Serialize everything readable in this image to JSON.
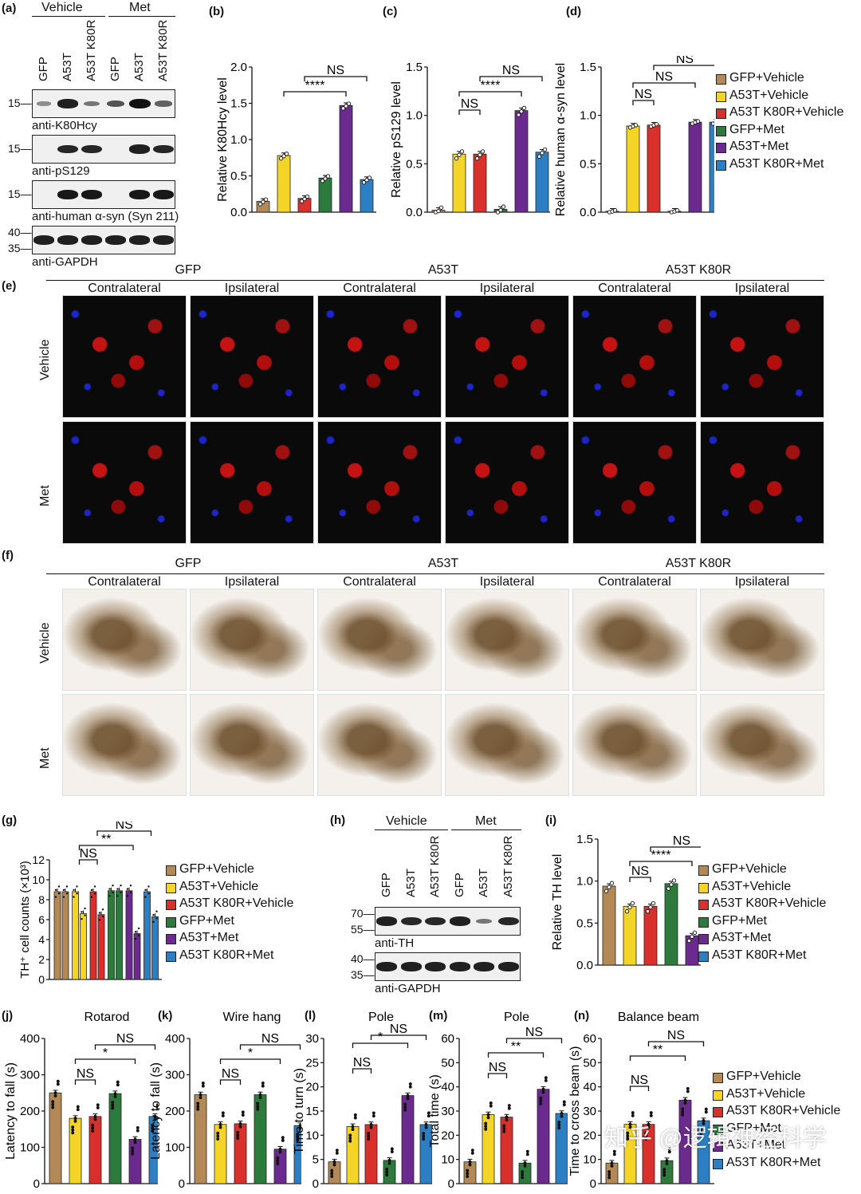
{
  "figure": {
    "a": {
      "label": "(a)",
      "groups": [
        "Vehicle",
        "Met"
      ],
      "lanes": [
        "GFP",
        "A53T",
        "A53T K80R",
        "GFP",
        "A53T",
        "A53T K80R"
      ],
      "blots": [
        {
          "name": "anti-K80Hcy",
          "marker": "15—",
          "intensity": [
            0.15,
            0.9,
            0.3,
            0.55,
            1.0,
            0.45
          ]
        },
        {
          "name": "anti-pS129",
          "marker": "15—",
          "intensity": [
            0,
            0.85,
            0.85,
            0,
            0.9,
            0.85
          ]
        },
        {
          "name": "anti-human α-syn (Syn 211)",
          "marker": "15—",
          "intensity": [
            0,
            0.95,
            0.95,
            0,
            0.95,
            0.95
          ]
        },
        {
          "name": "anti-GAPDH",
          "marker": "40—\n35—",
          "intensity": [
            0.9,
            0.9,
            0.9,
            0.9,
            0.9,
            0.9
          ]
        }
      ]
    },
    "legend_items": [
      {
        "label": "GFP+Vehicle",
        "color": "#b38a56"
      },
      {
        "label": "A53T+Vehicle",
        "color": "#f4d427"
      },
      {
        "label": "A53T K80R+Vehicle",
        "color": "#d9302c"
      },
      {
        "label": "GFP+Met",
        "color": "#2d7a3d"
      },
      {
        "label": "A53T+Met",
        "color": "#6b2a8e"
      },
      {
        "label": "A53T K80R+Met",
        "color": "#2d7fc4"
      }
    ],
    "e": {
      "label": "(e)",
      "groups": [
        "GFP",
        "A53T",
        "A53T K80R"
      ],
      "sides": [
        "Contralateral",
        "Ipsilateral"
      ],
      "rows": [
        "Vehicle",
        "Met"
      ]
    },
    "f": {
      "label": "(f)",
      "groups": [
        "GFP",
        "A53T",
        "A53T K80R"
      ],
      "sides": [
        "Contralateral",
        "Ipsilateral"
      ],
      "rows": [
        "Vehicle",
        "Met"
      ]
    },
    "h": {
      "label": "(h)",
      "groups": [
        "Vehicle",
        "Met"
      ],
      "lanes": [
        "GFP",
        "A53T",
        "A53T K80R",
        "GFP",
        "A53T",
        "A53T K80R"
      ],
      "blots": [
        {
          "name": "anti-TH",
          "marker": "70—\n55—",
          "intensity": [
            0.9,
            0.85,
            0.85,
            0.9,
            0.3,
            0.85
          ]
        },
        {
          "name": "anti-GAPDH",
          "marker": "40—\n35—",
          "intensity": [
            0.9,
            0.9,
            0.9,
            0.9,
            0.9,
            0.9
          ]
        }
      ]
    },
    "watermark": "知乎 @逻辑神经科学"
  },
  "chart_data": [
    {
      "id": "b",
      "label": "(b)",
      "type": "bar",
      "title": "",
      "ylabel": "Relative K80Hcy level",
      "ylim": [
        0,
        2.0
      ],
      "yticks": [
        "0.0",
        "0.5",
        "1.0",
        "1.5",
        "2.0"
      ],
      "values": [
        0.15,
        0.78,
        0.19,
        0.47,
        1.47,
        0.45
      ],
      "sig": [
        {
          "from": 1,
          "to": 4,
          "text": "****"
        },
        {
          "from": 2,
          "to": 5,
          "text": "NS"
        }
      ]
    },
    {
      "id": "c",
      "label": "(c)",
      "type": "bar",
      "title": "",
      "ylabel": "Relative pS129 level",
      "ylim": [
        0,
        1.5
      ],
      "yticks": [
        "0.0",
        "0.5",
        "1.0",
        "1.5"
      ],
      "values": [
        0.02,
        0.6,
        0.6,
        0.03,
        1.05,
        0.62
      ],
      "sig": [
        {
          "from": 1,
          "to": 2,
          "text": "NS"
        },
        {
          "from": 1,
          "to": 4,
          "text": "****"
        },
        {
          "from": 2,
          "to": 5,
          "text": "NS"
        }
      ]
    },
    {
      "id": "d",
      "label": "(d)",
      "type": "bar",
      "title": "",
      "ylabel": "Relative human α-syn level",
      "ylim": [
        0,
        1.5
      ],
      "yticks": [
        "0.0",
        "0.5",
        "1.0",
        "1.5"
      ],
      "values": [
        0.01,
        0.89,
        0.9,
        0.01,
        0.93,
        0.93
      ],
      "sig": [
        {
          "from": 1,
          "to": 2,
          "text": "NS"
        },
        {
          "from": 1,
          "to": 4,
          "text": "NS"
        },
        {
          "from": 2,
          "to": 5,
          "text": "NS"
        }
      ]
    },
    {
      "id": "g",
      "label": "(g)",
      "type": "bar",
      "title": "",
      "ylabel": "TH⁺ cell counts (×10³)",
      "ylim": [
        0,
        12
      ],
      "yticks": [
        "0",
        "2",
        "4",
        "6",
        "8",
        "10",
        "12"
      ],
      "values_pairs": [
        [
          8.8,
          8.8
        ],
        [
          8.8,
          6.6
        ],
        [
          8.8,
          6.5
        ],
        [
          8.9,
          8.9
        ],
        [
          8.9,
          4.6
        ],
        [
          8.8,
          6.3
        ]
      ],
      "sig": [
        {
          "from": 1,
          "to": 2,
          "text": "NS"
        },
        {
          "from": 1,
          "to": 4,
          "text": "**"
        },
        {
          "from": 2,
          "to": 5,
          "text": "NS"
        }
      ]
    },
    {
      "id": "i",
      "label": "(i)",
      "type": "bar",
      "title": "",
      "ylabel": "Relative TH level",
      "ylim": [
        0,
        1.5
      ],
      "yticks": [
        "0.0",
        "0.5",
        "1.0",
        "1.5"
      ],
      "values": [
        0.94,
        0.7,
        0.7,
        0.97,
        0.35,
        0.7
      ],
      "sig": [
        {
          "from": 1,
          "to": 2,
          "text": "NS"
        },
        {
          "from": 1,
          "to": 4,
          "text": "****"
        },
        {
          "from": 2,
          "to": 5,
          "text": "NS"
        }
      ]
    },
    {
      "id": "j",
      "label": "(j)",
      "type": "bar",
      "title": "Rotarod",
      "ylabel": "Latency to fall (s)",
      "ylim": [
        0,
        400
      ],
      "yticks": [
        "0",
        "100",
        "200",
        "300",
        "400"
      ],
      "values": [
        250,
        180,
        185,
        248,
        122,
        185
      ],
      "sig": [
        {
          "from": 1,
          "to": 2,
          "text": "NS"
        },
        {
          "from": 1,
          "to": 4,
          "text": "*"
        },
        {
          "from": 2,
          "to": 5,
          "text": "NS"
        }
      ]
    },
    {
      "id": "k",
      "label": "(k)",
      "type": "bar",
      "title": "Wire hang",
      "ylabel": "Latency to fall (s)",
      "ylim": [
        0,
        400
      ],
      "yticks": [
        "0",
        "100",
        "200",
        "300",
        "400"
      ],
      "values": [
        245,
        163,
        165,
        245,
        95,
        160
      ],
      "sig": [
        {
          "from": 1,
          "to": 2,
          "text": "NS"
        },
        {
          "from": 1,
          "to": 4,
          "text": "*"
        },
        {
          "from": 2,
          "to": 5,
          "text": "NS"
        }
      ]
    },
    {
      "id": "l",
      "label": "(l)",
      "type": "bar",
      "title": "Pole",
      "ylabel": "Time to turn (s)",
      "ylim": [
        0,
        30
      ],
      "yticks": [
        "0",
        "5",
        "10",
        "15",
        "20",
        "25",
        "30"
      ],
      "values": [
        4.5,
        11.8,
        12.2,
        4.8,
        18.2,
        12.2
      ],
      "sig": [
        {
          "from": 1,
          "to": 2,
          "text": "NS"
        },
        {
          "from": 1,
          "to": 4,
          "text": "*"
        },
        {
          "from": 2,
          "to": 5,
          "text": "NS"
        }
      ]
    },
    {
      "id": "m",
      "label": "(m)",
      "type": "bar",
      "title": "Pole",
      "ylabel": "Total time (s)",
      "ylim": [
        0,
        60
      ],
      "yticks": [
        "0",
        "10",
        "20",
        "30",
        "40",
        "50",
        "60"
      ],
      "values": [
        9,
        28.5,
        27.5,
        8.5,
        39,
        29
      ],
      "sig": [
        {
          "from": 1,
          "to": 2,
          "text": "NS"
        },
        {
          "from": 1,
          "to": 4,
          "text": "**"
        },
        {
          "from": 2,
          "to": 5,
          "text": "NS"
        }
      ]
    },
    {
      "id": "n",
      "label": "(n)",
      "type": "bar",
      "title": "Balance beam",
      "ylabel": "Time to cross beam (s)",
      "ylim": [
        0,
        60
      ],
      "yticks": [
        "0",
        "10",
        "20",
        "30",
        "40",
        "50",
        "60"
      ],
      "values": [
        8.5,
        24.5,
        24.5,
        9.5,
        34.5,
        26
      ],
      "sig": [
        {
          "from": 1,
          "to": 2,
          "text": "NS"
        },
        {
          "from": 1,
          "to": 4,
          "text": "**"
        },
        {
          "from": 2,
          "to": 5,
          "text": "NS"
        }
      ]
    }
  ]
}
